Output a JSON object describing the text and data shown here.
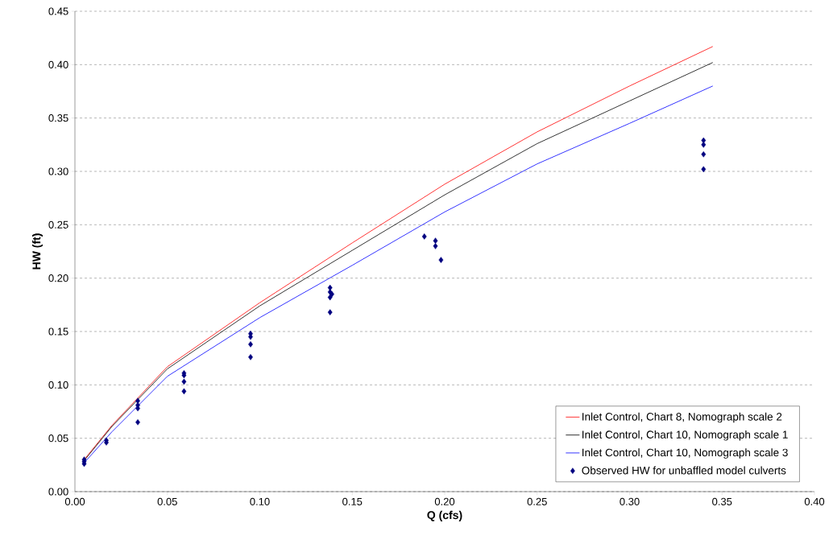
{
  "chart_data": {
    "type": "line",
    "xlabel": "Q (cfs)",
    "ylabel": "HW (ft)",
    "xlim": [
      0,
      0.4
    ],
    "ylim": [
      0,
      0.45
    ],
    "xticks": [
      {
        "value": 0,
        "label": "0.00"
      },
      {
        "value": 0.05,
        "label": "0.05"
      },
      {
        "value": 0.1,
        "label": "0.10"
      },
      {
        "value": 0.15,
        "label": "0.15"
      },
      {
        "value": 0.2,
        "label": "0.20"
      },
      {
        "value": 0.25,
        "label": "0.25"
      },
      {
        "value": 0.3,
        "label": "0.30"
      },
      {
        "value": 0.35,
        "label": "0.35"
      },
      {
        "value": 0.4,
        "label": "0.40"
      }
    ],
    "yticks": [
      {
        "value": 0,
        "label": "0.00"
      },
      {
        "value": 0.05,
        "label": "0.05"
      },
      {
        "value": 0.1,
        "label": "0.10"
      },
      {
        "value": 0.15,
        "label": "0.15"
      },
      {
        "value": 0.2,
        "label": "0.20"
      },
      {
        "value": 0.25,
        "label": "0.25"
      },
      {
        "value": 0.3,
        "label": "0.30"
      },
      {
        "value": 0.35,
        "label": "0.35"
      },
      {
        "value": 0.4,
        "label": "0.40"
      },
      {
        "value": 0.45,
        "label": "0.45"
      }
    ],
    "grid": "y",
    "legend": "bottom right",
    "series": [
      {
        "name": "Inlet Control, Chart 8, Nomograph scale 2",
        "color": "#ff0000",
        "marker": "none",
        "x": [
          0.005,
          0.02,
          0.05,
          0.1,
          0.15,
          0.2,
          0.25,
          0.3,
          0.345
        ],
        "values": [
          0.03,
          0.062,
          0.117,
          0.177,
          0.233,
          0.288,
          0.337,
          0.38,
          0.417
        ]
      },
      {
        "name": "Inlet Control, Chart 10, Nomograph scale 1",
        "color": "#000000",
        "marker": "none",
        "x": [
          0.005,
          0.02,
          0.05,
          0.1,
          0.15,
          0.2,
          0.25,
          0.3,
          0.345
        ],
        "values": [
          0.029,
          0.061,
          0.115,
          0.174,
          0.226,
          0.278,
          0.326,
          0.366,
          0.402
        ]
      },
      {
        "name": "Inlet Control, Chart 10, Nomograph scale 3",
        "color": "#0000ff",
        "marker": "none",
        "x": [
          0.005,
          0.02,
          0.05,
          0.1,
          0.15,
          0.2,
          0.25,
          0.3,
          0.345
        ],
        "values": [
          0.027,
          0.056,
          0.108,
          0.163,
          0.212,
          0.262,
          0.307,
          0.345,
          0.38
        ]
      },
      {
        "name": "Observed HW for unbaffled model culverts",
        "type": "scatter",
        "color": "#000080",
        "marker": "diamond",
        "x": [
          0.005,
          0.005,
          0.005,
          0.017,
          0.017,
          0.034,
          0.034,
          0.034,
          0.034,
          0.059,
          0.059,
          0.059,
          0.059,
          0.095,
          0.095,
          0.095,
          0.095,
          0.138,
          0.138,
          0.138,
          0.139,
          0.138,
          0.189,
          0.195,
          0.195,
          0.198,
          0.34,
          0.34,
          0.34,
          0.34
        ],
        "values": [
          0.03,
          0.028,
          0.026,
          0.048,
          0.046,
          0.085,
          0.081,
          0.078,
          0.065,
          0.111,
          0.109,
          0.103,
          0.094,
          0.148,
          0.145,
          0.138,
          0.126,
          0.191,
          0.187,
          0.182,
          0.185,
          0.168,
          0.239,
          0.235,
          0.23,
          0.217,
          0.329,
          0.325,
          0.316,
          0.302
        ]
      }
    ]
  }
}
